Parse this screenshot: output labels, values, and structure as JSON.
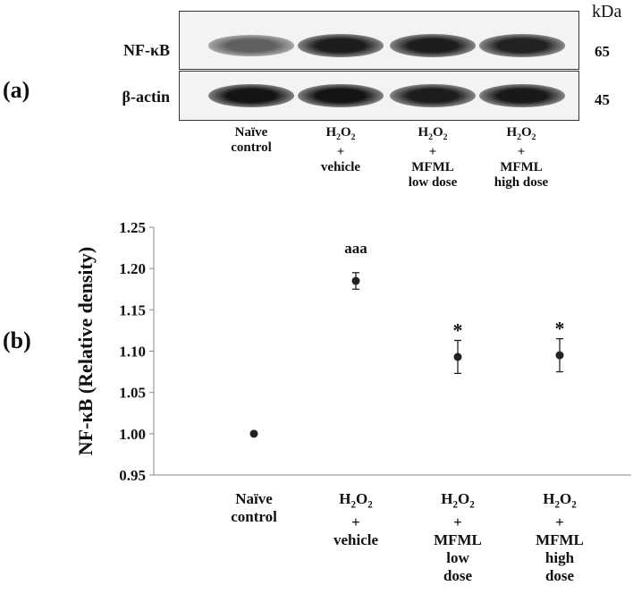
{
  "panel_a": {
    "label": "(a)",
    "kda_label": "kDa",
    "blots": [
      {
        "name": "NF-κB",
        "mw": "65",
        "bands": [
          0.55,
          0.95,
          0.95,
          0.92
        ]
      },
      {
        "name": "β-actin",
        "mw": "45",
        "bands": [
          1.0,
          1.0,
          0.95,
          0.97
        ]
      }
    ],
    "groups": [
      {
        "lines": [
          "Naïve",
          "control"
        ]
      },
      {
        "lines": [
          "H2O2",
          "+",
          "vehicle"
        ]
      },
      {
        "lines": [
          "H2O2",
          "+",
          "MFML",
          "low dose"
        ]
      },
      {
        "lines": [
          "H2O2",
          "+",
          "MFML",
          "high dose"
        ]
      }
    ]
  },
  "panel_b": {
    "label": "(b)"
  },
  "chart_data": {
    "type": "scatter",
    "ylabel": "NF-κB (Relative density)",
    "ylim": [
      0.95,
      1.25
    ],
    "yticks": [
      "0.95",
      "1.00",
      "1.05",
      "1.10",
      "1.15",
      "1.20",
      "1.25"
    ],
    "categories": [
      {
        "lines": [
          "Naïve",
          "control"
        ]
      },
      {
        "lines": [
          "H2O2",
          "+",
          "vehicle"
        ]
      },
      {
        "lines": [
          "H2O2",
          "+",
          "MFML",
          "low",
          "dose"
        ]
      },
      {
        "lines": [
          "H2O2",
          "+",
          "MFML",
          "high",
          "dose"
        ]
      }
    ],
    "values": [
      1.0,
      1.185,
      1.093,
      1.095
    ],
    "errors": [
      0.0,
      0.01,
      0.02,
      0.02
    ],
    "annotations": [
      "",
      "aaa",
      "*",
      "*"
    ],
    "grid": false
  }
}
